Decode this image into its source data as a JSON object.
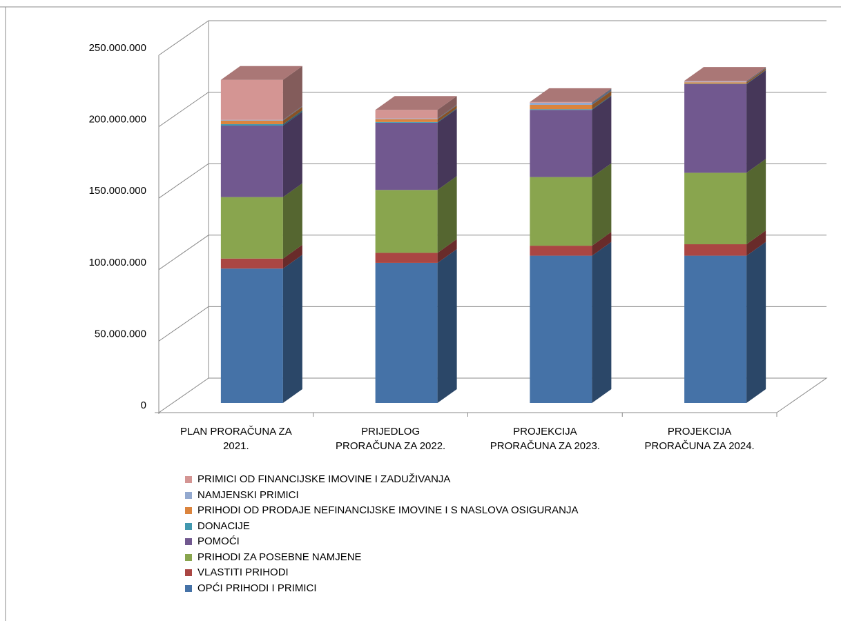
{
  "chart_data": {
    "type": "bar",
    "stacked": true,
    "three_d": true,
    "categories": [
      [
        "PLAN PRORAČUNA ZA",
        "2021."
      ],
      [
        "PRIJEDLOG",
        "PRORAČUNA ZA 2022."
      ],
      [
        "PROJEKCIJA",
        "PRORAČUNA ZA 2023."
      ],
      [
        "PROJEKCIJA",
        "PRORAČUNA ZA 2024."
      ]
    ],
    "y_ticks": [
      "0",
      "50.000.000",
      "100.000.000",
      "150.000.000",
      "200.000.000",
      "250.000.000"
    ],
    "ylim": [
      0,
      250000000
    ],
    "grid": true,
    "legend_position": "bottom",
    "series": [
      {
        "name": "OPĆI PRIHODI I PRIMICI",
        "color": "#4572A7",
        "values": [
          94000000,
          98000000,
          103000000,
          103000000
        ]
      },
      {
        "name": "VLASTITI PRIHODI",
        "color": "#AA4643",
        "values": [
          7000000,
          7000000,
          7000000,
          8000000
        ]
      },
      {
        "name": "PRIHODI ZA POSEBNE NAMJENE",
        "color": "#89A54E",
        "values": [
          43000000,
          44000000,
          48000000,
          50000000
        ]
      },
      {
        "name": "POMOĆI",
        "color": "#71588F",
        "values": [
          50000000,
          47000000,
          47000000,
          62000000
        ]
      },
      {
        "name": "DONACIJE",
        "color": "#4198AF",
        "values": [
          1000000,
          500000,
          500000,
          300000
        ]
      },
      {
        "name": "PRIHODI OD PRODAJE NEFINANCIJSKE IMOVINE I S NASLOVA OSIGURANJA",
        "color": "#DB843D",
        "values": [
          2500000,
          2000000,
          3000000,
          1000000
        ]
      },
      {
        "name": "NAMJENSKI PRIMICI",
        "color": "#93A9CF",
        "values": [
          500000,
          500000,
          1500000,
          500000
        ]
      },
      {
        "name": "PRIMICI OD FINANCIJSKE IMOVINE I ZADUŽIVANJA",
        "color": "#D49593",
        "values": [
          28000000,
          6000000,
          500000,
          500000
        ]
      }
    ]
  }
}
